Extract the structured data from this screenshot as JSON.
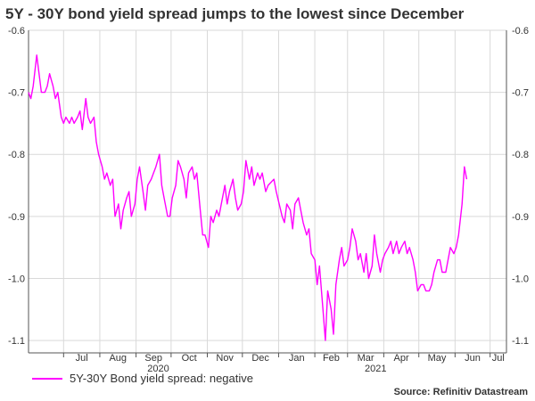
{
  "chart_data": {
    "type": "line",
    "title": "5Y - 30Y bond yield spread jumps to the lowest since December",
    "source": "Source: Refinitiv Datastream",
    "colors": {
      "series": "#ff00ff",
      "grid": "#d9d9d9",
      "axis": "#555555"
    },
    "y_range": [
      -1.12,
      -0.6
    ],
    "x_range": [
      "2020-06-01",
      "2021-07-15"
    ],
    "y_ticks": [
      -0.6,
      -0.7,
      -0.8,
      -0.9,
      -1.0,
      -1.1
    ],
    "y_tick_labels": [
      "-0.6",
      "-0.7",
      "-0.8",
      "-0.9",
      "-1.0",
      "-1.1"
    ],
    "x_month_ticks": [
      {
        "label": "Jul",
        "date": "2020-07-01"
      },
      {
        "label": "Aug",
        "date": "2020-08-01"
      },
      {
        "label": "Sep",
        "date": "2020-09-01"
      },
      {
        "label": "Oct",
        "date": "2020-10-01"
      },
      {
        "label": "Nov",
        "date": "2020-11-01"
      },
      {
        "label": "Dec",
        "date": "2020-12-01"
      },
      {
        "label": "Jan",
        "date": "2021-01-01"
      },
      {
        "label": "Feb",
        "date": "2021-02-01"
      },
      {
        "label": "Mar",
        "date": "2021-03-01"
      },
      {
        "label": "Apr",
        "date": "2021-04-01"
      },
      {
        "label": "May",
        "date": "2021-05-01"
      },
      {
        "label": "Jun",
        "date": "2021-06-01"
      },
      {
        "label": "Jul",
        "date": "2021-07-01"
      }
    ],
    "x_year_labels": [
      {
        "label": "2020",
        "date": "2020-09-20"
      },
      {
        "label": "2021",
        "date": "2021-03-25"
      }
    ],
    "grid": true,
    "legend_position": "bottom-left",
    "series": [
      {
        "name": "5Y-30Y Bond yield spread: negative",
        "points": [
          [
            "2020-06-01",
            -0.7
          ],
          [
            "2020-06-03",
            -0.71
          ],
          [
            "2020-06-05",
            -0.69
          ],
          [
            "2020-06-08",
            -0.64
          ],
          [
            "2020-06-10",
            -0.67
          ],
          [
            "2020-06-12",
            -0.7
          ],
          [
            "2020-06-15",
            -0.7
          ],
          [
            "2020-06-17",
            -0.69
          ],
          [
            "2020-06-19",
            -0.67
          ],
          [
            "2020-06-22",
            -0.69
          ],
          [
            "2020-06-24",
            -0.71
          ],
          [
            "2020-06-26",
            -0.7
          ],
          [
            "2020-06-29",
            -0.74
          ],
          [
            "2020-07-01",
            -0.75
          ],
          [
            "2020-07-03",
            -0.74
          ],
          [
            "2020-07-06",
            -0.75
          ],
          [
            "2020-07-08",
            -0.74
          ],
          [
            "2020-07-10",
            -0.75
          ],
          [
            "2020-07-13",
            -0.74
          ],
          [
            "2020-07-15",
            -0.73
          ],
          [
            "2020-07-17",
            -0.76
          ],
          [
            "2020-07-20",
            -0.71
          ],
          [
            "2020-07-22",
            -0.74
          ],
          [
            "2020-07-24",
            -0.75
          ],
          [
            "2020-07-27",
            -0.74
          ],
          [
            "2020-07-29",
            -0.78
          ],
          [
            "2020-07-31",
            -0.8
          ],
          [
            "2020-08-03",
            -0.82
          ],
          [
            "2020-08-05",
            -0.84
          ],
          [
            "2020-08-07",
            -0.83
          ],
          [
            "2020-08-10",
            -0.85
          ],
          [
            "2020-08-12",
            -0.84
          ],
          [
            "2020-08-14",
            -0.9
          ],
          [
            "2020-08-17",
            -0.88
          ],
          [
            "2020-08-19",
            -0.92
          ],
          [
            "2020-08-21",
            -0.89
          ],
          [
            "2020-08-24",
            -0.87
          ],
          [
            "2020-08-26",
            -0.86
          ],
          [
            "2020-08-28",
            -0.9
          ],
          [
            "2020-08-31",
            -0.88
          ],
          [
            "2020-09-02",
            -0.84
          ],
          [
            "2020-09-04",
            -0.82
          ],
          [
            "2020-09-07",
            -0.86
          ],
          [
            "2020-09-09",
            -0.89
          ],
          [
            "2020-09-11",
            -0.85
          ],
          [
            "2020-09-14",
            -0.84
          ],
          [
            "2020-09-16",
            -0.83
          ],
          [
            "2020-09-18",
            -0.82
          ],
          [
            "2020-09-21",
            -0.8
          ],
          [
            "2020-09-23",
            -0.85
          ],
          [
            "2020-09-25",
            -0.87
          ],
          [
            "2020-09-28",
            -0.9
          ],
          [
            "2020-09-30",
            -0.9
          ],
          [
            "2020-10-02",
            -0.87
          ],
          [
            "2020-10-05",
            -0.85
          ],
          [
            "2020-10-07",
            -0.81
          ],
          [
            "2020-10-09",
            -0.82
          ],
          [
            "2020-10-12",
            -0.84
          ],
          [
            "2020-10-14",
            -0.87
          ],
          [
            "2020-10-16",
            -0.83
          ],
          [
            "2020-10-19",
            -0.82
          ],
          [
            "2020-10-21",
            -0.84
          ],
          [
            "2020-10-23",
            -0.83
          ],
          [
            "2020-10-26",
            -0.89
          ],
          [
            "2020-10-28",
            -0.93
          ],
          [
            "2020-10-30",
            -0.93
          ],
          [
            "2020-11-02",
            -0.95
          ],
          [
            "2020-11-04",
            -0.9
          ],
          [
            "2020-11-06",
            -0.91
          ],
          [
            "2020-11-09",
            -0.89
          ],
          [
            "2020-11-11",
            -0.9
          ],
          [
            "2020-11-13",
            -0.88
          ],
          [
            "2020-11-16",
            -0.85
          ],
          [
            "2020-11-18",
            -0.88
          ],
          [
            "2020-11-20",
            -0.86
          ],
          [
            "2020-11-23",
            -0.84
          ],
          [
            "2020-11-25",
            -0.87
          ],
          [
            "2020-11-27",
            -0.89
          ],
          [
            "2020-11-30",
            -0.88
          ],
          [
            "2020-12-02",
            -0.86
          ],
          [
            "2020-12-04",
            -0.81
          ],
          [
            "2020-12-07",
            -0.84
          ],
          [
            "2020-12-09",
            -0.82
          ],
          [
            "2020-12-11",
            -0.85
          ],
          [
            "2020-12-14",
            -0.83
          ],
          [
            "2020-12-16",
            -0.84
          ],
          [
            "2020-12-18",
            -0.83
          ],
          [
            "2020-12-21",
            -0.86
          ],
          [
            "2020-12-23",
            -0.85
          ],
          [
            "2020-12-28",
            -0.84
          ],
          [
            "2020-12-30",
            -0.86
          ],
          [
            "2021-01-04",
            -0.9
          ],
          [
            "2021-01-06",
            -0.91
          ],
          [
            "2021-01-08",
            -0.88
          ],
          [
            "2021-01-11",
            -0.89
          ],
          [
            "2021-01-13",
            -0.92
          ],
          [
            "2021-01-15",
            -0.88
          ],
          [
            "2021-01-18",
            -0.87
          ],
          [
            "2021-01-20",
            -0.89
          ],
          [
            "2021-01-22",
            -0.91
          ],
          [
            "2021-01-25",
            -0.93
          ],
          [
            "2021-01-27",
            -0.92
          ],
          [
            "2021-01-29",
            -0.96
          ],
          [
            "2021-02-01",
            -0.97
          ],
          [
            "2021-02-03",
            -1.01
          ],
          [
            "2021-02-05",
            -0.98
          ],
          [
            "2021-02-08",
            -1.05
          ],
          [
            "2021-02-10",
            -1.1
          ],
          [
            "2021-02-12",
            -1.02
          ],
          [
            "2021-02-15",
            -1.05
          ],
          [
            "2021-02-17",
            -1.09
          ],
          [
            "2021-02-19",
            -1.01
          ],
          [
            "2021-02-22",
            -0.97
          ],
          [
            "2021-02-24",
            -0.95
          ],
          [
            "2021-02-26",
            -0.98
          ],
          [
            "2021-03-01",
            -0.97
          ],
          [
            "2021-03-03",
            -0.95
          ],
          [
            "2021-03-05",
            -0.92
          ],
          [
            "2021-03-08",
            -0.94
          ],
          [
            "2021-03-10",
            -0.97
          ],
          [
            "2021-03-12",
            -0.96
          ],
          [
            "2021-03-15",
            -0.99
          ],
          [
            "2021-03-17",
            -0.96
          ],
          [
            "2021-03-19",
            -1.0
          ],
          [
            "2021-03-22",
            -0.98
          ],
          [
            "2021-03-24",
            -0.93
          ],
          [
            "2021-03-26",
            -0.96
          ],
          [
            "2021-03-29",
            -0.99
          ],
          [
            "2021-03-31",
            -0.97
          ],
          [
            "2021-04-02",
            -0.96
          ],
          [
            "2021-04-05",
            -0.95
          ],
          [
            "2021-04-07",
            -0.94
          ],
          [
            "2021-04-09",
            -0.96
          ],
          [
            "2021-04-12",
            -0.94
          ],
          [
            "2021-04-14",
            -0.96
          ],
          [
            "2021-04-16",
            -0.95
          ],
          [
            "2021-04-19",
            -0.94
          ],
          [
            "2021-04-21",
            -0.96
          ],
          [
            "2021-04-23",
            -0.95
          ],
          [
            "2021-04-26",
            -0.97
          ],
          [
            "2021-04-28",
            -0.99
          ],
          [
            "2021-04-30",
            -1.02
          ],
          [
            "2021-05-03",
            -1.01
          ],
          [
            "2021-05-05",
            -1.01
          ],
          [
            "2021-05-07",
            -1.02
          ],
          [
            "2021-05-10",
            -1.02
          ],
          [
            "2021-05-12",
            -1.01
          ],
          [
            "2021-05-14",
            -0.99
          ],
          [
            "2021-05-17",
            -0.97
          ],
          [
            "2021-05-19",
            -0.97
          ],
          [
            "2021-05-21",
            -0.99
          ],
          [
            "2021-05-24",
            -0.99
          ],
          [
            "2021-05-26",
            -0.97
          ],
          [
            "2021-05-28",
            -0.95
          ],
          [
            "2021-05-31",
            -0.96
          ],
          [
            "2021-06-02",
            -0.95
          ],
          [
            "2021-06-04",
            -0.93
          ],
          [
            "2021-06-07",
            -0.88
          ],
          [
            "2021-06-09",
            -0.82
          ],
          [
            "2021-06-11",
            -0.84
          ]
        ]
      }
    ]
  }
}
